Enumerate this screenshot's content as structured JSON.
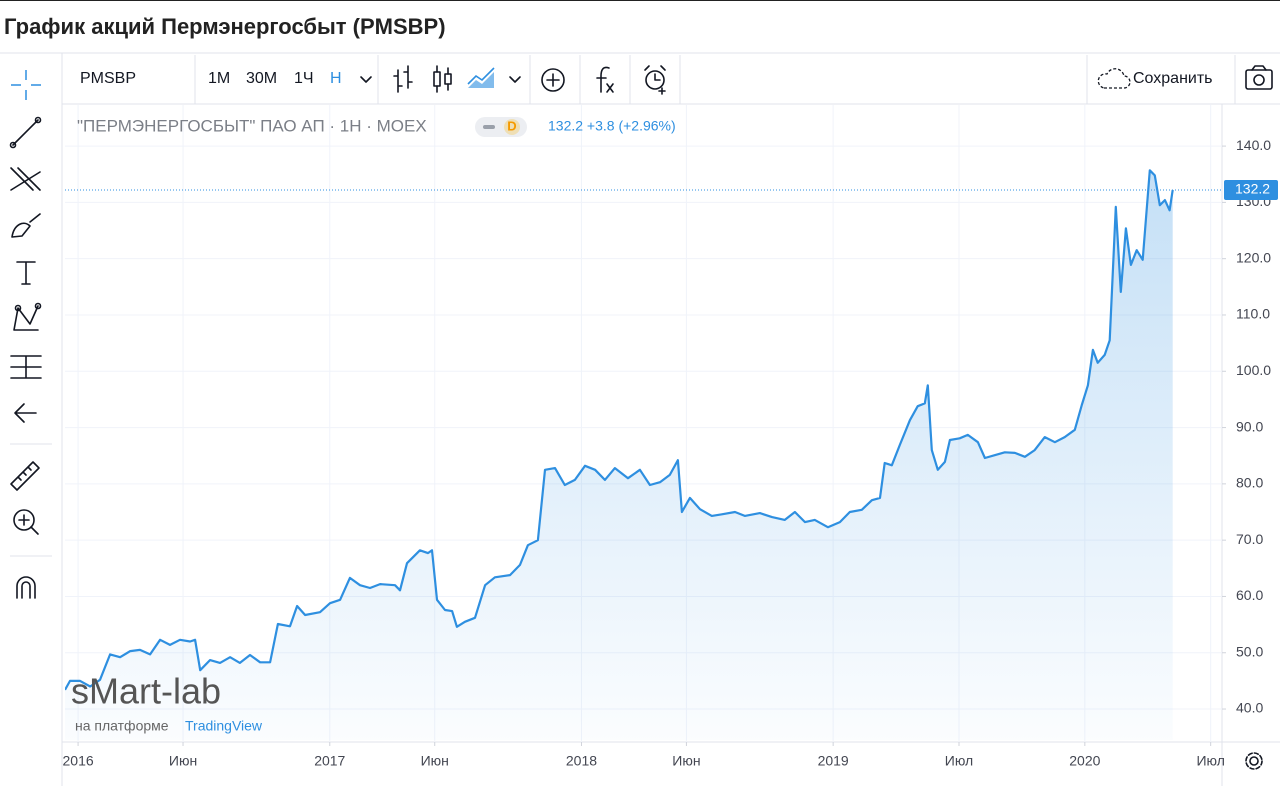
{
  "title": "График акций Пермэнергосбыт (PMSBP)",
  "toolbar": {
    "symbol": "PMSBP",
    "intervals": [
      "1M",
      "30M",
      "1Ч",
      "Н"
    ],
    "save": "Сохранить"
  },
  "legend": {
    "name": "\"ПЕРМЭНЕРГОСБЫТ\" ПАО АП · 1Н · MOEX",
    "badge": "D",
    "quote": "132.2 +3.8 (+2.96%)"
  },
  "watermark": {
    "brand": "sMart-lab",
    "platform": "на платформе",
    "provider": "TradingView"
  },
  "chart_data": {
    "type": "area",
    "color": "#2e8fe0",
    "grid": true,
    "last_price": 132.2,
    "x": [
      2015.948,
      2015.968,
      2016.008,
      2016.048,
      2016.087,
      2016.127,
      2016.167,
      2016.207,
      2016.246,
      2016.286,
      2016.326,
      2016.365,
      2016.405,
      2016.445,
      2016.465,
      2016.485,
      2016.524,
      2016.564,
      2016.604,
      2016.643,
      2016.683,
      2016.723,
      2016.763,
      2016.794,
      2016.842,
      2016.87,
      2016.902,
      2016.961,
      2017.001,
      2017.041,
      2017.08,
      2017.12,
      2017.16,
      2017.2,
      2017.259,
      2017.279,
      2017.307,
      2017.358,
      2017.39,
      2017.406,
      2017.426,
      2017.458,
      2017.486,
      2017.505,
      2017.537,
      2017.577,
      2017.617,
      2017.656,
      2017.716,
      2017.756,
      2017.787,
      2017.827,
      2017.855,
      2017.895,
      2017.934,
      2017.974,
      2018.014,
      2018.054,
      2018.093,
      2018.133,
      2018.185,
      2018.232,
      2018.272,
      2018.312,
      2018.351,
      2018.383,
      2018.399,
      2018.431,
      2018.471,
      2018.518,
      2018.558,
      2018.61,
      2018.649,
      2018.709,
      2018.757,
      2018.808,
      2018.848,
      2018.888,
      2018.927,
      2018.979,
      2019.027,
      2019.066,
      2019.114,
      2019.154,
      2019.186,
      2019.205,
      2019.233,
      2019.265,
      2019.305,
      2019.336,
      2019.364,
      2019.376,
      2019.392,
      2019.416,
      2019.444,
      2019.464,
      2019.503,
      2019.535,
      2019.575,
      2019.603,
      2019.642,
      2019.682,
      2019.722,
      2019.762,
      2019.801,
      2019.841,
      2019.881,
      2019.92,
      2019.96,
      2019.988,
      2020.012,
      2020.032,
      2020.051,
      2020.079,
      2020.099,
      2020.123,
      2020.143,
      2020.163,
      2020.183,
      2020.206,
      2020.23,
      2020.258,
      2020.278,
      2020.298,
      2020.318,
      2020.337,
      2020.349
    ],
    "values": [
      43.4,
      45,
      45,
      44,
      45.2,
      49.7,
      49.2,
      50.3,
      50.5,
      49.7,
      52.3,
      51.4,
      52.3,
      52,
      52.3,
      46.9,
      48.7,
      48.2,
      49.2,
      48.2,
      49.6,
      48.3,
      48.3,
      55.1,
      54.7,
      58.3,
      56.7,
      57.2,
      58.8,
      59.4,
      63.3,
      62,
      61.5,
      62.2,
      62,
      61.1,
      65.9,
      68.2,
      67.7,
      68.2,
      59.4,
      57.6,
      57.4,
      54.6,
      55.5,
      56.2,
      62,
      63.4,
      63.8,
      65.6,
      69.1,
      70,
      82.5,
      82.8,
      79.8,
      80.7,
      83.2,
      82.5,
      80.7,
      82.8,
      81,
      82.5,
      79.8,
      80.3,
      81.6,
      84.2,
      75,
      77.5,
      75.5,
      74.3,
      74.6,
      75,
      74.3,
      74.8,
      74.1,
      73.6,
      75,
      73.2,
      73.6,
      72.3,
      73.2,
      75,
      75.4,
      77.1,
      77.5,
      83.7,
      83.3,
      86.9,
      91.3,
      93.8,
      94.3,
      97.5,
      86,
      82.5,
      83.9,
      87.8,
      88.1,
      88.7,
      87.4,
      84.6,
      85.1,
      85.6,
      85.5,
      84.8,
      86,
      88.3,
      87.4,
      88.3,
      89.6,
      94,
      97.5,
      103.8,
      101.5,
      102.9,
      105.5,
      129.2,
      114.1,
      125.4,
      118.9,
      121.5,
      119.8,
      135.7,
      134.8,
      129.5,
      130.4,
      128.6,
      132.2
    ],
    "xlim": [
      2015.948,
      2020.545
    ],
    "xticks": [
      {
        "value": 2016,
        "label": "2016"
      },
      {
        "value": 2016.417,
        "label": "Июн"
      },
      {
        "value": 2017,
        "label": "2017"
      },
      {
        "value": 2017.417,
        "label": "Июн"
      },
      {
        "value": 2018,
        "label": "2018"
      },
      {
        "value": 2018.417,
        "label": "Июн"
      },
      {
        "value": 2019,
        "label": "2019"
      },
      {
        "value": 2019.5,
        "label": "Июл"
      },
      {
        "value": 2020,
        "label": "2020"
      },
      {
        "value": 2020.5,
        "label": "Июл"
      }
    ],
    "ylim": [
      34.5,
      147.3
    ],
    "yticks": [
      {
        "value": 40,
        "label": "40.0"
      },
      {
        "value": 50,
        "label": "50.0"
      },
      {
        "value": 60,
        "label": "60.0"
      },
      {
        "value": 70,
        "label": "70.0"
      },
      {
        "value": 80,
        "label": "80.0"
      },
      {
        "value": 90,
        "label": "90.0"
      },
      {
        "value": 100,
        "label": "100.0"
      },
      {
        "value": 110,
        "label": "110.0"
      },
      {
        "value": 120,
        "label": "120.0"
      },
      {
        "value": 130,
        "label": "130.0"
      },
      {
        "value": 140,
        "label": "140.0"
      }
    ]
  }
}
